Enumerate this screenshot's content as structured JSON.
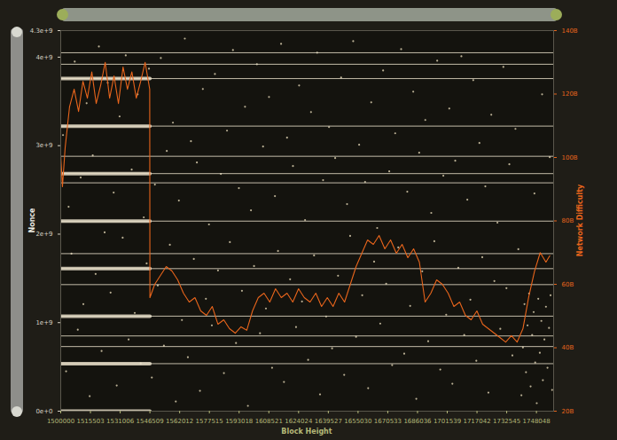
{
  "chart_data": {
    "type": "scatter",
    "x_label": "Block Height",
    "y_label": "Nonce",
    "y2_label": "Network Difficulty",
    "xlim": [
      1500000,
      1757000
    ],
    "xticks": [
      1500000,
      1515503,
      1531006,
      1546509,
      1562012,
      1577515,
      1593018,
      1608521,
      1624024,
      1639527,
      1655030,
      1670533,
      1686036,
      1701539,
      1717042,
      1732545,
      1748048
    ],
    "ylim": [
      0,
      4300000000.0
    ],
    "yticks": [
      {
        "value": 0,
        "label": "0e+0"
      },
      {
        "value": 1000000000.0,
        "label": "1e+9"
      },
      {
        "value": 2000000000.0,
        "label": "2e+9"
      },
      {
        "value": 3000000000.0,
        "label": "3e+9"
      },
      {
        "value": 4000000000.0,
        "label": "4e+9"
      },
      {
        "value": 4300000000.0,
        "label": "4.3e+9"
      }
    ],
    "y2lim": [
      20000000000.0,
      140000000000.0
    ],
    "y2ticks": [
      {
        "value": 20000000000.0,
        "label": "20B"
      },
      {
        "value": 40000000000.0,
        "label": "40B"
      },
      {
        "value": 60000000000.0,
        "label": "60B"
      },
      {
        "value": 80000000000.0,
        "label": "80B"
      },
      {
        "value": 100000000000.0,
        "label": "100B"
      },
      {
        "value": 120000000000.0,
        "label": "120B"
      },
      {
        "value": 140000000000.0,
        "label": "140B"
      }
    ],
    "grid": false,
    "series": [
      {
        "type": "scatter",
        "marker": "circle",
        "color": "#d8ccad",
        "x": [
          1501200,
          1502800,
          1504100,
          1505600,
          1507300,
          1508900,
          1510400,
          1511800,
          1513500,
          1515100,
          1516700,
          1518200,
          1519900,
          1521300,
          1522900,
          1524500,
          1526000,
          1527600,
          1529200,
          1530700,
          1532300,
          1533900,
          1535400,
          1537000,
          1538600,
          1540100,
          1541700,
          1543300,
          1544800,
          1546000,
          1547500,
          1549100,
          1550600,
          1552200,
          1553800,
          1555300,
          1556900,
          1558500,
          1560000,
          1561600,
          1563200,
          1564700,
          1566300,
          1567900,
          1569400,
          1571000,
          1572600,
          1574100,
          1575700,
          1577300,
          1578800,
          1580400,
          1582000,
          1583500,
          1585100,
          1586700,
          1588200,
          1589800,
          1591400,
          1592900,
          1594500,
          1596100,
          1597600,
          1599200,
          1600800,
          1602300,
          1603900,
          1605500,
          1607000,
          1608600,
          1610200,
          1611700,
          1613300,
          1614900,
          1616400,
          1618000,
          1619600,
          1621100,
          1622700,
          1624300,
          1625800,
          1627400,
          1629000,
          1630500,
          1632100,
          1633700,
          1635200,
          1636800,
          1638400,
          1639900,
          1641500,
          1643100,
          1644600,
          1646200,
          1647800,
          1649300,
          1650900,
          1652500,
          1654000,
          1655600,
          1657200,
          1658700,
          1660300,
          1661900,
          1663400,
          1665000,
          1666600,
          1668100,
          1669700,
          1671300,
          1672800,
          1674400,
          1676000,
          1677500,
          1679100,
          1680700,
          1682200,
          1683800,
          1685400,
          1686900,
          1688500,
          1690100,
          1691600,
          1693200,
          1694800,
          1696300,
          1697900,
          1699500,
          1701000,
          1702600,
          1704200,
          1705700,
          1707300,
          1708900,
          1710400,
          1712000,
          1713600,
          1715100,
          1716700,
          1718300,
          1719800,
          1721400,
          1723000,
          1724500,
          1726100,
          1727700,
          1729200,
          1730800,
          1732400,
          1733900,
          1735500,
          1737100,
          1738600,
          1740200,
          1741000,
          1741800,
          1742600,
          1743400,
          1744200,
          1745000,
          1745800,
          1746600,
          1747400,
          1748200,
          1749000,
          1749800,
          1750600,
          1751400,
          1752200,
          1753000,
          1753800,
          1754600,
          1755400,
          1756200,
          1747000,
          1751000,
          1755000
        ],
        "values": [
          3120000000.0,
          450000000.0,
          2310000000.0,
          1780000000.0,
          3950000000.0,
          920000000.0,
          2640000000.0,
          1210000000.0,
          3480000000.0,
          170000000.0,
          2890000000.0,
          1550000000.0,
          4120000000.0,
          680000000.0,
          2020000000.0,
          3710000000.0,
          1340000000.0,
          2470000000.0,
          290000000.0,
          3330000000.0,
          1960000000.0,
          4020000000.0,
          810000000.0,
          2730000000.0,
          1110000000.0,
          3580000000.0,
          540000000.0,
          2190000000.0,
          1670000000.0,
          3870000000.0,
          380000000.0,
          2560000000.0,
          1420000000.0,
          3990000000.0,
          740000000.0,
          2940000000.0,
          1880000000.0,
          3260000000.0,
          110000000.0,
          2380000000.0,
          1030000000.0,
          4210000000.0,
          610000000.0,
          3050000000.0,
          1720000000.0,
          2810000000.0,
          230000000.0,
          3640000000.0,
          1270000000.0,
          2110000000.0,
          970000000.0,
          3810000000.0,
          1590000000.0,
          2680000000.0,
          430000000.0,
          3170000000.0,
          1910000000.0,
          4080000000.0,
          770000000.0,
          2520000000.0,
          1360000000.0,
          3440000000.0,
          60000000.0,
          2270000000.0,
          1640000000.0,
          3920000000.0,
          880000000.0,
          2990000000.0,
          1160000000.0,
          3550000000.0,
          490000000.0,
          2430000000.0,
          1810000000.0,
          4150000000.0,
          330000000.0,
          3090000000.0,
          1490000000.0,
          2770000000.0,
          950000000.0,
          3680000000.0,
          1240000000.0,
          2160000000.0,
          580000000.0,
          3380000000.0,
          1760000000.0,
          4050000000.0,
          190000000.0,
          2610000000.0,
          1070000000.0,
          3210000000.0,
          710000000.0,
          2860000000.0,
          1530000000.0,
          3770000000.0,
          410000000.0,
          2340000000.0,
          1980000000.0,
          4180000000.0,
          840000000.0,
          3010000000.0,
          1310000000.0,
          2590000000.0,
          260000000.0,
          3490000000.0,
          1690000000.0,
          2070000000.0,
          990000000.0,
          3850000000.0,
          1440000000.0,
          2710000000.0,
          520000000.0,
          3140000000.0,
          1850000000.0,
          4090000000.0,
          650000000.0,
          2480000000.0,
          1190000000.0,
          3610000000.0,
          140000000.0,
          2920000000.0,
          1580000000.0,
          3290000000.0,
          790000000.0,
          2240000000.0,
          1920000000.0,
          3960000000.0,
          470000000.0,
          2660000000.0,
          1090000000.0,
          3420000000.0,
          310000000.0,
          2830000000.0,
          1620000000.0,
          4010000000.0,
          860000000.0,
          2390000000.0,
          1260000000.0,
          3740000000.0,
          570000000.0,
          3030000000.0,
          1740000000.0,
          2540000000.0,
          210000000.0,
          3350000000.0,
          1470000000.0,
          2130000000.0,
          930000000.0,
          3890000000.0,
          1390000000.0,
          2790000000.0,
          630000000.0,
          3190000000.0,
          1830000000.0,
          180000000.0,
          720000000.0,
          1210000000.0,
          440000000.0,
          970000000.0,
          1330000000.0,
          280000000.0,
          860000000.0,
          1120000000.0,
          550000000.0,
          90000000.0,
          1270000000.0,
          660000000.0,
          1020000000.0,
          350000000.0,
          810000000.0,
          1180000000.0,
          490000000.0,
          940000000.0,
          1310000000.0,
          240000000.0,
          2460000000.0,
          3580000000.0,
          2870000000.0
        ]
      },
      {
        "type": "line",
        "line_style": "solid",
        "color": "#efe6cf",
        "x": [
          1500000,
          1546509,
          1546509,
          1500000,
          1546509,
          1546509,
          1500000,
          1546509,
          1546509,
          1500000,
          1546509,
          1546509,
          1500000,
          1546509,
          1546509,
          1500000,
          1546509,
          1546509,
          1500000,
          1546509,
          1546509,
          1500000,
          1546509
        ],
        "values": [
          0,
          0,
          null,
          536870912,
          536870912,
          null,
          1073741824,
          1073741824,
          null,
          1610612736,
          1610612736,
          null,
          2147483648,
          2147483648,
          null,
          2684354560,
          2684354560,
          null,
          3221225472,
          3221225472,
          null,
          3758096384,
          3758096384
        ]
      },
      {
        "type": "line",
        "line_style": "solid",
        "color": "#efe6cf",
        "x": [
          1500000,
          1757000,
          1757000,
          1500000,
          1757000,
          1757000,
          1500000,
          1757000,
          1757000,
          1500000,
          1757000,
          1757000,
          1500000,
          1757000,
          1757000,
          1500000,
          1757000,
          1757000,
          1500000,
          1757000,
          1757000,
          1500000,
          1757000,
          1757000,
          1500000,
          1757000,
          1757000,
          1500000,
          1757000,
          1757000,
          1500000,
          1757000,
          1757000,
          1500000,
          1757000,
          1757000,
          1500000,
          1757000,
          1757000,
          1500000,
          1757000,
          1757000,
          1500000,
          1757000
        ],
        "values": [
          536870912,
          536870912,
          null,
          1073741824,
          1073741824,
          null,
          1610612736,
          1610612736,
          null,
          2147483648,
          2147483648,
          null,
          2684354560,
          2684354560,
          null,
          3221225472,
          3221225472,
          null,
          3758096384,
          3758096384,
          null,
          4050000000.0,
          4050000000.0,
          null,
          3920000000.0,
          3920000000.0,
          null,
          2880000000.0,
          2880000000.0,
          null,
          2580000000.0,
          2580000000.0,
          null,
          1780000000.0,
          1780000000.0,
          null,
          1430000000.0,
          1430000000.0,
          null,
          850000000.0,
          850000000.0,
          null,
          730000000.0,
          730000000.0
        ]
      },
      {
        "type": "line",
        "axis": "y2",
        "line_style": "solid",
        "color": "#e8651c",
        "x": [
          1500000,
          1500900,
          1502300,
          1504600,
          1507000,
          1509300,
          1511600,
          1513900,
          1516200,
          1518500,
          1520900,
          1523200,
          1525500,
          1527800,
          1530100,
          1532500,
          1534800,
          1537100,
          1539400,
          1541700,
          1544000,
          1546400,
          1546509,
          1549000,
          1552000,
          1555000,
          1558000,
          1561000,
          1564000,
          1567000,
          1570000,
          1573000,
          1576000,
          1579000,
          1582000,
          1585000,
          1588000,
          1591000,
          1594000,
          1597000,
          1600000,
          1603000,
          1606000,
          1609000,
          1612000,
          1615000,
          1618000,
          1621000,
          1624000,
          1627000,
          1630000,
          1633000,
          1636000,
          1639000,
          1642000,
          1645000,
          1648000,
          1651000,
          1654000,
          1657000,
          1660000,
          1663000,
          1666000,
          1669000,
          1672000,
          1675000,
          1678000,
          1681000,
          1684000,
          1687000,
          1690000,
          1693000,
          1696000,
          1699000,
          1702000,
          1705000,
          1708000,
          1711000,
          1714000,
          1717000,
          1720000,
          1723000,
          1726000,
          1729000,
          1732000,
          1735000,
          1738000,
          1741000,
          1744000,
          1747000,
          1750000,
          1753000,
          1755000
        ],
        "values": [
          100600000000.0,
          90800000000.0,
          103000000000.0,
          116000000000.0,
          121500000000.0,
          114500000000.0,
          124000000000.0,
          118700000000.0,
          127000000000.0,
          117000000000.0,
          123000000000.0,
          130000000000.0,
          118700000000.0,
          125700000000.0,
          117000000000.0,
          128500000000.0,
          121500000000.0,
          127000000000.0,
          118700000000.0,
          124000000000.0,
          130000000000.0,
          121500000000.0,
          55800000000.0,
          60000000000.0,
          62800000000.0,
          65600000000.0,
          64200000000.0,
          61400000000.0,
          57200000000.0,
          54400000000.0,
          55800000000.0,
          51600000000.0,
          50200000000.0,
          53000000000.0,
          47400000000.0,
          48800000000.0,
          46000000000.0,
          44600000000.0,
          46600000000.0,
          45500000000.0,
          51600000000.0,
          55800000000.0,
          57200000000.0,
          54400000000.0,
          58600000000.0,
          55800000000.0,
          57200000000.0,
          54400000000.0,
          58600000000.0,
          55800000000.0,
          54400000000.0,
          57200000000.0,
          53000000000.0,
          55800000000.0,
          53000000000.0,
          57200000000.0,
          54400000000.0,
          60000000000.0,
          65600000000.0,
          69800000000.0,
          74000000000.0,
          72600000000.0,
          75400000000.0,
          71200000000.0,
          74000000000.0,
          69800000000.0,
          72600000000.0,
          68400000000.0,
          71200000000.0,
          67000000000.0,
          54400000000.0,
          57200000000.0,
          61400000000.0,
          60000000000.0,
          57200000000.0,
          53000000000.0,
          54400000000.0,
          50200000000.0,
          48800000000.0,
          51600000000.0,
          47400000000.0,
          46000000000.0,
          44600000000.0,
          43200000000.0,
          41800000000.0,
          43800000000.0,
          41800000000.0,
          46000000000.0,
          56000000000.0,
          64000000000.0,
          70000000000.0,
          67000000000.0,
          69000000000.0
        ]
      }
    ]
  }
}
